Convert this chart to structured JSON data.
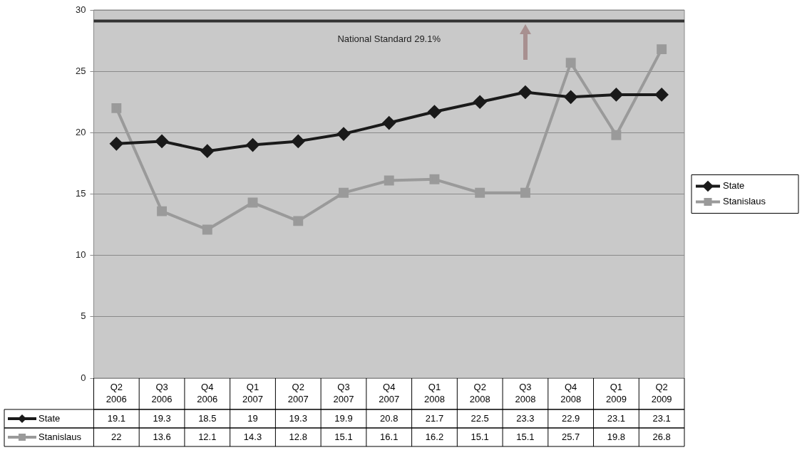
{
  "chart_data": {
    "type": "line",
    "categories": [
      "Q2 2006",
      "Q3 2006",
      "Q4 2006",
      "Q1 2007",
      "Q2 2007",
      "Q3 2007",
      "Q4 2007",
      "Q1 2008",
      "Q2 2008",
      "Q3 2008",
      "Q4 2008",
      "Q1 2009",
      "Q2 2009"
    ],
    "series": [
      {
        "name": "State",
        "color": "#1a1a1a",
        "marker": "diamond",
        "values": [
          19.1,
          19.3,
          18.5,
          19,
          19.3,
          19.9,
          20.8,
          21.7,
          22.5,
          23.3,
          22.9,
          23.1,
          23.1
        ]
      },
      {
        "name": "Stanislaus",
        "color": "#9a9a9a",
        "marker": "square",
        "values": [
          22,
          13.6,
          12.1,
          14.3,
          12.8,
          15.1,
          16.1,
          16.2,
          15.1,
          15.1,
          25.7,
          19.8,
          26.8
        ]
      }
    ],
    "ylim": [
      0,
      30
    ],
    "yticks": [
      0,
      5,
      10,
      15,
      20,
      25,
      30
    ],
    "grid": "y",
    "legend": "right",
    "data_labels": true,
    "ref_lines": [
      {
        "axis": "y",
        "value": 29.1,
        "label": "National Standard 29.1%",
        "color": "#333333"
      }
    ]
  }
}
